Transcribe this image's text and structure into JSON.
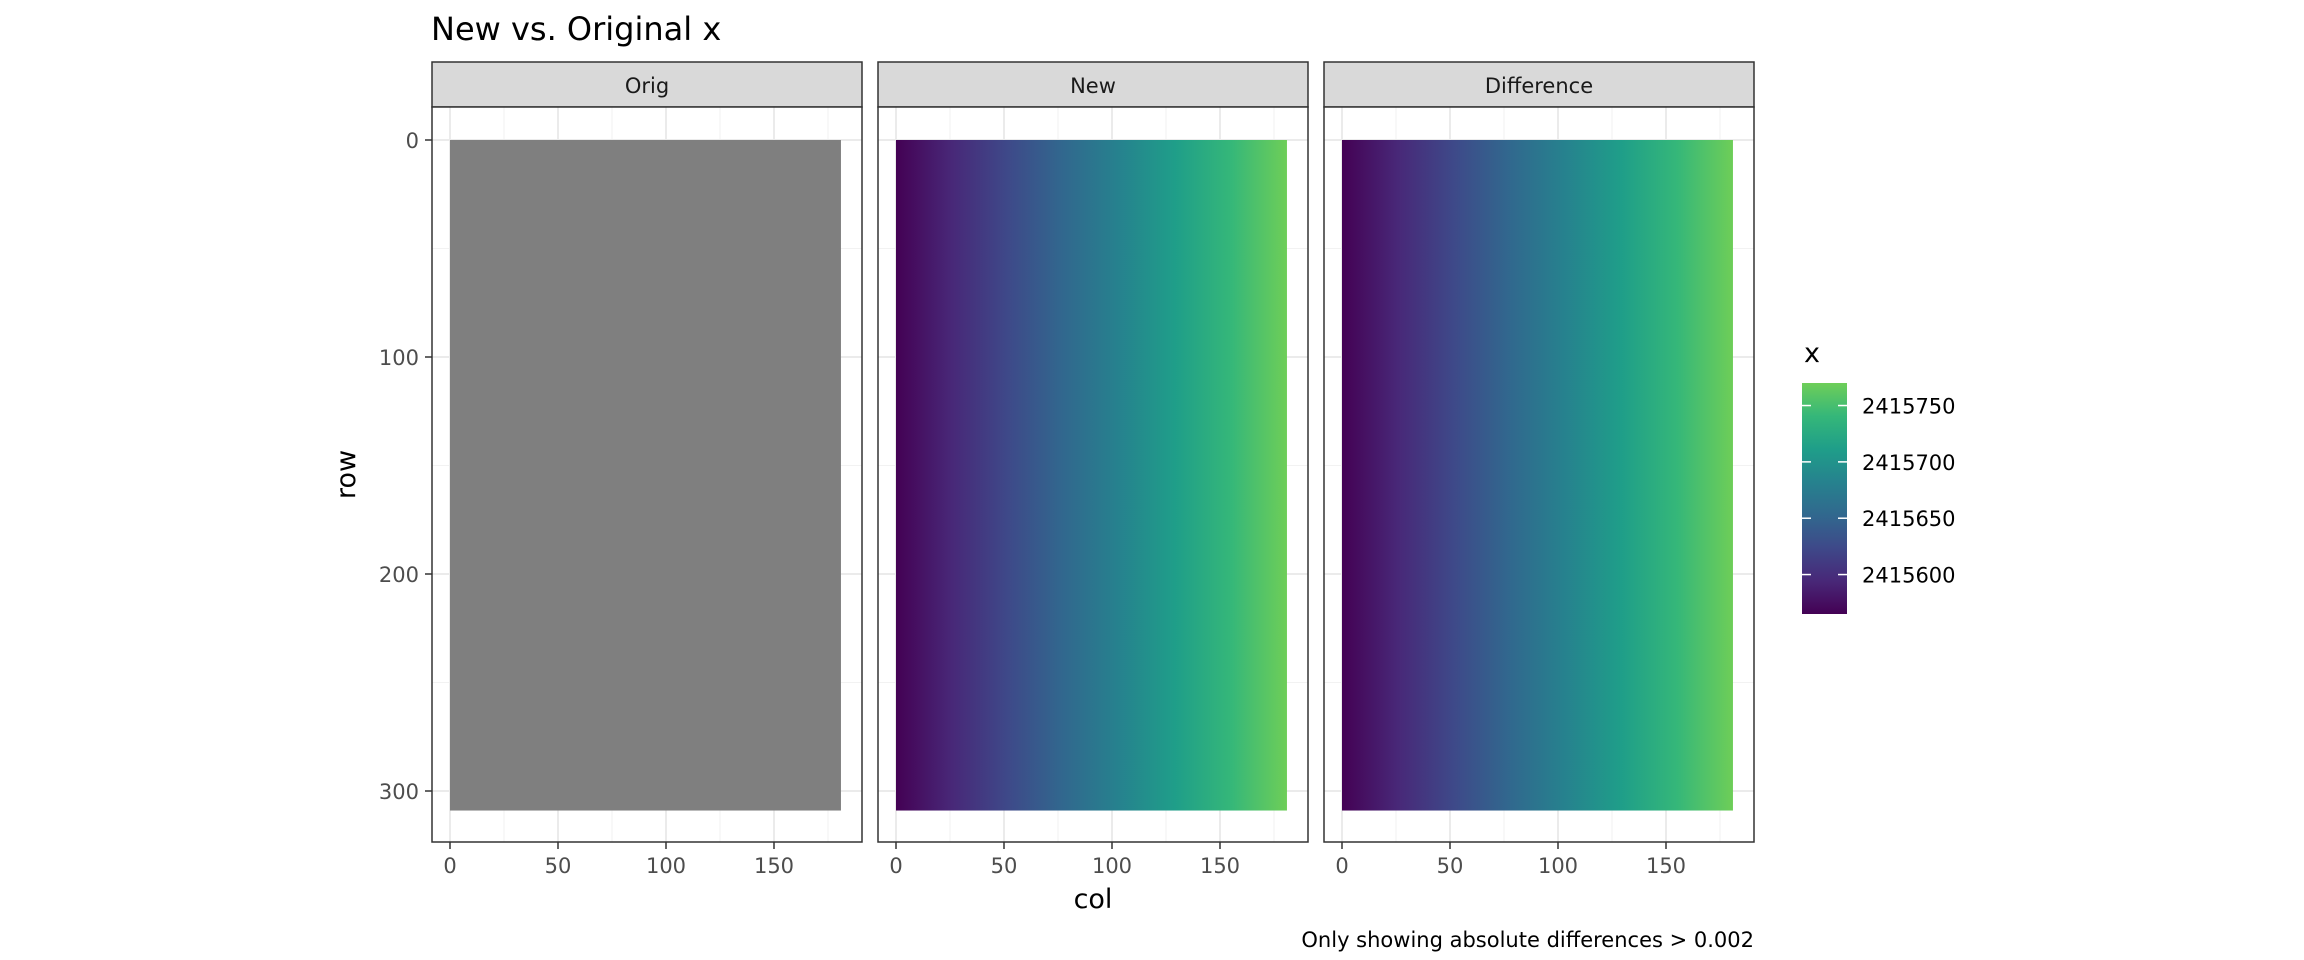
{
  "chart_data": {
    "type": "heatmap",
    "title": "New vs. Original x",
    "caption": "Only showing absolute differences > 0.002",
    "xlabel": "col",
    "ylabel": "row",
    "x_range": [
      0,
      181
    ],
    "y_range": [
      0,
      309
    ],
    "x_ticks": [
      0,
      50,
      100,
      150
    ],
    "x_tick_labels": [
      "0",
      "50",
      "100",
      "150"
    ],
    "y_ticks": [
      0,
      100,
      200,
      300
    ],
    "y_tick_labels": [
      "0",
      "100",
      "200",
      "300"
    ],
    "y_reversed": true,
    "grid": true,
    "panels": [
      {
        "label": "Orig",
        "fill": "uniform",
        "color": "#7f7f7f"
      },
      {
        "label": "New",
        "fill": "gradient_by_col",
        "value_range": [
          2415565,
          2415770
        ]
      },
      {
        "label": "Difference",
        "fill": "gradient_by_col",
        "value_range": [
          2415565,
          2415770
        ]
      }
    ],
    "legend": {
      "title": "x",
      "position": "right",
      "colormap": "viridis",
      "limits": [
        2415565,
        2415770
      ],
      "breaks": [
        2415750,
        2415700,
        2415650,
        2415600
      ],
      "labels": [
        "2415750",
        "2415700",
        "2415650",
        "2415600"
      ]
    }
  }
}
